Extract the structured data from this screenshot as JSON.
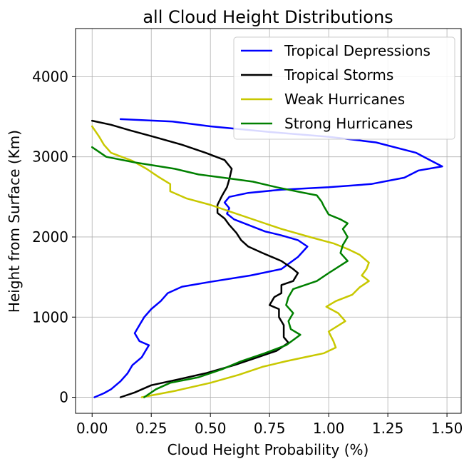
{
  "chart_data": {
    "type": "line",
    "title": "all Cloud Height Distributions",
    "xlabel": "Cloud Height Probability (%)",
    "ylabel": "Height from Surface (Km)",
    "xlim": [
      -0.07,
      1.56
    ],
    "ylim": [
      -200,
      4600
    ],
    "x_ticks": [
      0.0,
      0.25,
      0.5,
      0.75,
      1.0,
      1.25,
      1.5
    ],
    "x_tick_labels": [
      "0.00",
      "0.25",
      "0.50",
      "0.75",
      "1.00",
      "1.25",
      "1.50"
    ],
    "y_ticks": [
      0,
      1000,
      2000,
      3000,
      4000
    ],
    "y_tick_labels": [
      "0",
      "1000",
      "2000",
      "3000",
      "4000"
    ],
    "grid": true,
    "legend_position": "top-right",
    "series": [
      {
        "name": "Tropical Depressions",
        "color": "#0000ff",
        "points": [
          [
            0.01,
            0
          ],
          [
            0.05,
            50
          ],
          [
            0.08,
            100
          ],
          [
            0.12,
            200
          ],
          [
            0.15,
            300
          ],
          [
            0.17,
            400
          ],
          [
            0.21,
            500
          ],
          [
            0.24,
            650
          ],
          [
            0.2,
            700
          ],
          [
            0.18,
            800
          ],
          [
            0.2,
            900
          ],
          [
            0.22,
            1000
          ],
          [
            0.25,
            1100
          ],
          [
            0.29,
            1200
          ],
          [
            0.32,
            1300
          ],
          [
            0.38,
            1380
          ],
          [
            0.5,
            1440
          ],
          [
            0.67,
            1520
          ],
          [
            0.8,
            1600
          ],
          [
            0.87,
            1750
          ],
          [
            0.91,
            1880
          ],
          [
            0.87,
            1960
          ],
          [
            0.8,
            2020
          ],
          [
            0.73,
            2070
          ],
          [
            0.66,
            2150
          ],
          [
            0.6,
            2220
          ],
          [
            0.57,
            2290
          ],
          [
            0.58,
            2360
          ],
          [
            0.56,
            2430
          ],
          [
            0.58,
            2500
          ],
          [
            0.66,
            2550
          ],
          [
            0.8,
            2590
          ],
          [
            1.0,
            2620
          ],
          [
            1.18,
            2660
          ],
          [
            1.32,
            2740
          ],
          [
            1.38,
            2830
          ],
          [
            1.48,
            2880
          ],
          [
            1.44,
            2940
          ],
          [
            1.37,
            3050
          ],
          [
            1.2,
            3180
          ],
          [
            1.0,
            3250
          ],
          [
            0.75,
            3310
          ],
          [
            0.5,
            3380
          ],
          [
            0.34,
            3440
          ],
          [
            0.12,
            3470
          ]
        ]
      },
      {
        "name": "Tropical Storms",
        "color": "#000000",
        "points": [
          [
            0.12,
            0
          ],
          [
            0.18,
            60
          ],
          [
            0.25,
            150
          ],
          [
            0.36,
            220
          ],
          [
            0.48,
            300
          ],
          [
            0.6,
            400
          ],
          [
            0.7,
            500
          ],
          [
            0.78,
            580
          ],
          [
            0.83,
            680
          ],
          [
            0.81,
            750
          ],
          [
            0.81,
            900
          ],
          [
            0.79,
            1000
          ],
          [
            0.79,
            1100
          ],
          [
            0.75,
            1150
          ],
          [
            0.77,
            1250
          ],
          [
            0.8,
            1300
          ],
          [
            0.8,
            1400
          ],
          [
            0.85,
            1450
          ],
          [
            0.87,
            1550
          ],
          [
            0.85,
            1600
          ],
          [
            0.8,
            1700
          ],
          [
            0.72,
            1800
          ],
          [
            0.66,
            1880
          ],
          [
            0.63,
            1960
          ],
          [
            0.61,
            2050
          ],
          [
            0.58,
            2150
          ],
          [
            0.56,
            2230
          ],
          [
            0.53,
            2300
          ],
          [
            0.53,
            2400
          ],
          [
            0.55,
            2520
          ],
          [
            0.57,
            2620
          ],
          [
            0.58,
            2720
          ],
          [
            0.59,
            2850
          ],
          [
            0.56,
            2960
          ],
          [
            0.48,
            3050
          ],
          [
            0.38,
            3150
          ],
          [
            0.26,
            3250
          ],
          [
            0.16,
            3330
          ],
          [
            0.08,
            3400
          ],
          [
            0.0,
            3450
          ]
        ]
      },
      {
        "name": "Weak Hurricanes",
        "color": "#c8c800",
        "points": [
          [
            0.21,
            0
          ],
          [
            0.35,
            80
          ],
          [
            0.5,
            180
          ],
          [
            0.62,
            280
          ],
          [
            0.72,
            380
          ],
          [
            0.82,
            450
          ],
          [
            0.9,
            500
          ],
          [
            0.98,
            550
          ],
          [
            1.03,
            620
          ],
          [
            1.02,
            700
          ],
          [
            1.0,
            820
          ],
          [
            1.07,
            950
          ],
          [
            1.04,
            1050
          ],
          [
            0.99,
            1130
          ],
          [
            1.03,
            1200
          ],
          [
            1.1,
            1280
          ],
          [
            1.13,
            1370
          ],
          [
            1.17,
            1450
          ],
          [
            1.14,
            1520
          ],
          [
            1.16,
            1600
          ],
          [
            1.17,
            1680
          ],
          [
            1.13,
            1780
          ],
          [
            1.08,
            1850
          ],
          [
            1.02,
            1920
          ],
          [
            0.92,
            2000
          ],
          [
            0.8,
            2100
          ],
          [
            0.7,
            2200
          ],
          [
            0.6,
            2300
          ],
          [
            0.5,
            2400
          ],
          [
            0.4,
            2480
          ],
          [
            0.33,
            2570
          ],
          [
            0.33,
            2660
          ],
          [
            0.28,
            2750
          ],
          [
            0.23,
            2850
          ],
          [
            0.17,
            2950
          ],
          [
            0.08,
            3050
          ],
          [
            0.05,
            3150
          ],
          [
            0.03,
            3250
          ],
          [
            0.0,
            3380
          ]
        ]
      },
      {
        "name": "Strong Hurricanes",
        "color": "#008000",
        "points": [
          [
            0.22,
            0
          ],
          [
            0.27,
            100
          ],
          [
            0.33,
            180
          ],
          [
            0.45,
            250
          ],
          [
            0.55,
            350
          ],
          [
            0.63,
            450
          ],
          [
            0.73,
            550
          ],
          [
            0.82,
            650
          ],
          [
            0.88,
            780
          ],
          [
            0.84,
            850
          ],
          [
            0.83,
            950
          ],
          [
            0.85,
            1050
          ],
          [
            0.82,
            1150
          ],
          [
            0.83,
            1250
          ],
          [
            0.85,
            1350
          ],
          [
            0.95,
            1450
          ],
          [
            1.0,
            1550
          ],
          [
            1.08,
            1700
          ],
          [
            1.05,
            1800
          ],
          [
            1.06,
            1900
          ],
          [
            1.08,
            2000
          ],
          [
            1.06,
            2100
          ],
          [
            1.08,
            2170
          ],
          [
            1.05,
            2220
          ],
          [
            1.0,
            2280
          ],
          [
            0.98,
            2380
          ],
          [
            0.97,
            2440
          ],
          [
            0.95,
            2520
          ],
          [
            0.88,
            2560
          ],
          [
            0.78,
            2620
          ],
          [
            0.68,
            2690
          ],
          [
            0.58,
            2730
          ],
          [
            0.45,
            2780
          ],
          [
            0.35,
            2850
          ],
          [
            0.18,
            2930
          ],
          [
            0.06,
            3000
          ],
          [
            0.02,
            3080
          ],
          [
            0.0,
            3120
          ]
        ]
      }
    ]
  }
}
